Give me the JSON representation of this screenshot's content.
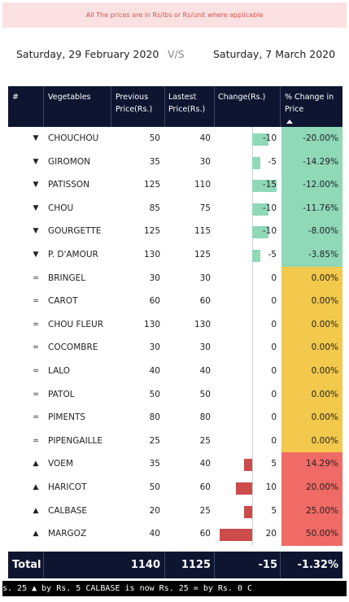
{
  "notice": "All The prices are in  Rs/lbs or Rs/unit where applicable",
  "dates": {
    "left": "Saturday, 29 February 2020",
    "vs": "V/S",
    "right": "Saturday, 7 March 2020"
  },
  "headers": {
    "num": "#",
    "veg": "Vegetables",
    "prev_l1": "Previous",
    "prev_l2": "Price(Rs.)",
    "last_l1": "Lastest",
    "last_l2": "Price(Rs.)",
    "chg": "Change(Rs.)",
    "pct_l1": "% Change in",
    "pct_l2": "Price"
  },
  "colors": {
    "down": "#8fd8b8",
    "flat": "#f2c94c",
    "up": "#f06a66",
    "bar_down": "#8fd8b8",
    "bar_up": "#cc4b4b",
    "header": "#0d1530"
  },
  "rows": [
    {
      "sym": "▼",
      "name": "CHOUCHOU",
      "prev": "50",
      "last": "40",
      "chg": "-10",
      "change": -10,
      "pct": "-20.00%",
      "trend": "down"
    },
    {
      "sym": "▼",
      "name": "GIROMON",
      "prev": "35",
      "last": "30",
      "chg": "-5",
      "change": -5,
      "pct": "-14.29%",
      "trend": "down"
    },
    {
      "sym": "▼",
      "name": "PATISSON",
      "prev": "125",
      "last": "110",
      "chg": "-15",
      "change": -15,
      "pct": "-12.00%",
      "trend": "down"
    },
    {
      "sym": "▼",
      "name": "CHOU",
      "prev": "85",
      "last": "75",
      "chg": "-10",
      "change": -10,
      "pct": "-11.76%",
      "trend": "down"
    },
    {
      "sym": "▼",
      "name": "GOURGETTE",
      "prev": "125",
      "last": "115",
      "chg": "-10",
      "change": -10,
      "pct": "-8.00%",
      "trend": "down"
    },
    {
      "sym": "▼",
      "name": "P. D'AMOUR",
      "prev": "130",
      "last": "125",
      "chg": "-5",
      "change": -5,
      "pct": "-3.85%",
      "trend": "down"
    },
    {
      "sym": "=",
      "name": "BRINGEL",
      "prev": "30",
      "last": "30",
      "chg": "0",
      "change": 0,
      "pct": "0.00%",
      "trend": "flat"
    },
    {
      "sym": "=",
      "name": "CAROT",
      "prev": "60",
      "last": "60",
      "chg": "0",
      "change": 0,
      "pct": "0.00%",
      "trend": "flat"
    },
    {
      "sym": "=",
      "name": "CHOU FLEUR",
      "prev": "130",
      "last": "130",
      "chg": "0",
      "change": 0,
      "pct": "0.00%",
      "trend": "flat"
    },
    {
      "sym": "=",
      "name": "COCOMBRE",
      "prev": "30",
      "last": "30",
      "chg": "0",
      "change": 0,
      "pct": "0.00%",
      "trend": "flat"
    },
    {
      "sym": "=",
      "name": "LALO",
      "prev": "40",
      "last": "40",
      "chg": "0",
      "change": 0,
      "pct": "0.00%",
      "trend": "flat"
    },
    {
      "sym": "=",
      "name": "PATOL",
      "prev": "50",
      "last": "50",
      "chg": "0",
      "change": 0,
      "pct": "0.00%",
      "trend": "flat"
    },
    {
      "sym": "=",
      "name": "PIMENTS",
      "prev": "80",
      "last": "80",
      "chg": "0",
      "change": 0,
      "pct": "0.00%",
      "trend": "flat"
    },
    {
      "sym": "=",
      "name": "PIPENGAILLE",
      "prev": "25",
      "last": "25",
      "chg": "0",
      "change": 0,
      "pct": "0.00%",
      "trend": "flat"
    },
    {
      "sym": "▲",
      "name": "VOEM",
      "prev": "35",
      "last": "40",
      "chg": "5",
      "change": 5,
      "pct": "14.29%",
      "trend": "up"
    },
    {
      "sym": "▲",
      "name": "HARICOT",
      "prev": "50",
      "last": "60",
      "chg": "10",
      "change": 10,
      "pct": "20.00%",
      "trend": "up"
    },
    {
      "sym": "▲",
      "name": "CALBASE",
      "prev": "20",
      "last": "25",
      "chg": "5",
      "change": 5,
      "pct": "25.00%",
      "trend": "up"
    },
    {
      "sym": "▲",
      "name": "MARGOZ",
      "prev": "40",
      "last": "60",
      "chg": "20",
      "change": 20,
      "pct": "50.00%",
      "trend": "up"
    }
  ],
  "total": {
    "label": "Total",
    "prev": "1140",
    "last": "1125",
    "chg": "-15",
    "pct": "-1.32%"
  },
  "ticker": "s. 25     ▲ by Rs. 5 CALBASE is now Rs. 25     = by Rs. 0 C"
}
